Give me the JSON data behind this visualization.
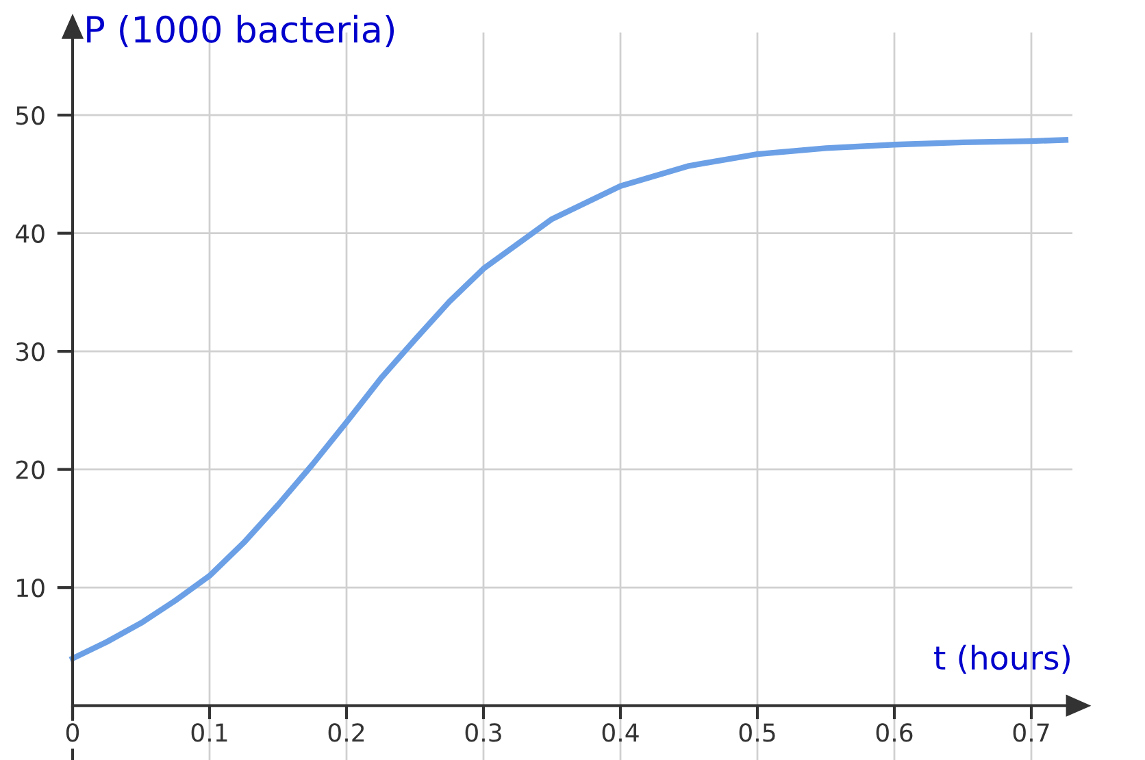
{
  "chart_data": {
    "type": "line",
    "xlabel": "t (hours)",
    "ylabel": "P (1000 bacteria)",
    "x": [
      0,
      0.025,
      0.05,
      0.075,
      0.1,
      0.125,
      0.15,
      0.175,
      0.2,
      0.225,
      0.25,
      0.275,
      0.3,
      0.35,
      0.4,
      0.45,
      0.5,
      0.55,
      0.6,
      0.65,
      0.7,
      0.725
    ],
    "series": [
      {
        "color": "#6ca0e6",
        "values": [
          4,
          5.4,
          7,
          8.9,
          11,
          13.8,
          17,
          20.4,
          24,
          27.7,
          31,
          34.2,
          37,
          41.2,
          44,
          45.7,
          46.7,
          47.2,
          47.5,
          47.7,
          47.8,
          47.9
        ]
      }
    ],
    "xlim": [
      0,
      0.73
    ],
    "ylim": [
      -4.6,
      57
    ],
    "xticks": [
      {
        "value": 0,
        "label": "0"
      },
      0.1,
      0.2,
      0.3,
      0.4,
      0.5,
      0.6,
      0.7
    ],
    "yticks": [
      10,
      20,
      30,
      40,
      50
    ],
    "grid": true,
    "legend": false,
    "marker": "none",
    "line_style": "solid"
  }
}
